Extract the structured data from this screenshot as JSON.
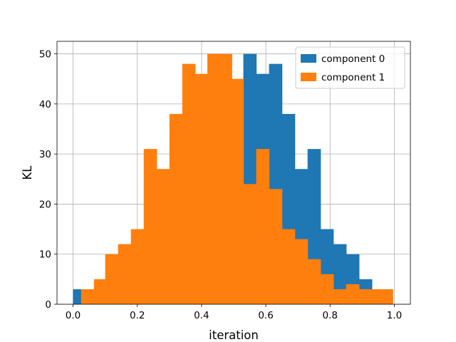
{
  "chart_data": {
    "type": "bar",
    "xlabel": "iteration",
    "ylabel": "KL",
    "xlim": [
      -0.05,
      1.05
    ],
    "ylim": [
      0,
      52.5
    ],
    "xticks": [
      "0.0",
      "0.2",
      "0.4",
      "0.6",
      "0.8",
      "1.0"
    ],
    "yticks": [
      "0",
      "10",
      "20",
      "30",
      "40",
      "50"
    ],
    "grid": true,
    "legend_position": "top-right",
    "series": [
      {
        "name": "component 0",
        "color": "#1f77b4",
        "bins": [
          [
            0.0,
            0.025,
            3
          ],
          [
            0.025,
            0.065,
            0
          ],
          [
            0.065,
            0.1,
            0
          ],
          [
            0.1,
            0.14,
            0
          ],
          [
            0.14,
            0.18,
            0
          ],
          [
            0.18,
            0.22,
            0
          ],
          [
            0.22,
            0.26,
            0
          ],
          [
            0.26,
            0.3,
            0
          ],
          [
            0.3,
            0.34,
            0
          ],
          [
            0.34,
            0.38,
            0
          ],
          [
            0.38,
            0.418,
            0
          ],
          [
            0.418,
            0.456,
            0
          ],
          [
            0.456,
            0.494,
            0
          ],
          [
            0.494,
            0.53,
            0
          ],
          [
            0.53,
            0.57,
            50
          ],
          [
            0.57,
            0.61,
            46
          ],
          [
            0.61,
            0.65,
            48
          ],
          [
            0.65,
            0.69,
            38
          ],
          [
            0.69,
            0.73,
            27
          ],
          [
            0.73,
            0.77,
            31
          ],
          [
            0.77,
            0.81,
            15
          ],
          [
            0.81,
            0.85,
            12
          ],
          [
            0.85,
            0.89,
            10
          ],
          [
            0.89,
            0.93,
            5
          ]
        ]
      },
      {
        "name": "component 1",
        "color": "#ff7f0e",
        "bins": [
          [
            0.025,
            0.065,
            3
          ],
          [
            0.065,
            0.1,
            5
          ],
          [
            0.1,
            0.14,
            10
          ],
          [
            0.14,
            0.18,
            12
          ],
          [
            0.18,
            0.22,
            15
          ],
          [
            0.22,
            0.26,
            31
          ],
          [
            0.26,
            0.3,
            27
          ],
          [
            0.3,
            0.34,
            38
          ],
          [
            0.34,
            0.38,
            48
          ],
          [
            0.38,
            0.418,
            46
          ],
          [
            0.418,
            0.456,
            50
          ],
          [
            0.456,
            0.494,
            50
          ],
          [
            0.494,
            0.53,
            45
          ],
          [
            0.53,
            0.57,
            24
          ],
          [
            0.57,
            0.61,
            31
          ],
          [
            0.61,
            0.65,
            23
          ],
          [
            0.65,
            0.69,
            15
          ],
          [
            0.69,
            0.73,
            13
          ],
          [
            0.73,
            0.77,
            9
          ],
          [
            0.77,
            0.81,
            6
          ],
          [
            0.81,
            0.85,
            3
          ],
          [
            0.85,
            0.89,
            4
          ],
          [
            0.89,
            0.93,
            3
          ],
          [
            0.93,
            0.995,
            3
          ]
        ]
      }
    ]
  }
}
